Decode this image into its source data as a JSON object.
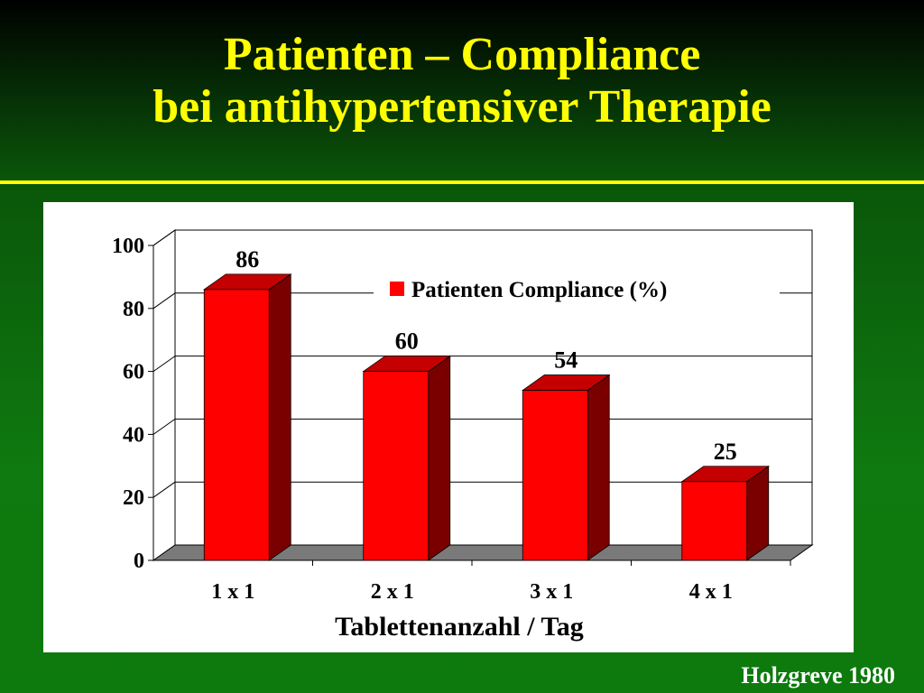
{
  "title": {
    "line1": "Patienten – Compliance",
    "line2": "bei antihypertensiver Therapie"
  },
  "source": "Holzgreve 1980",
  "colors": {
    "bar_front": "#ff0000",
    "bar_side": "#7a0000",
    "bar_top": "#c40000",
    "title": "#ffff00",
    "floor": "#7a7a7a"
  },
  "chart_data": {
    "type": "bar",
    "categories": [
      "1 x 1",
      "2 x 1",
      "3 x 1",
      "4 x 1"
    ],
    "series": [
      {
        "name": "Patienten Compliance (%)",
        "values": [
          86,
          60,
          54,
          25
        ]
      }
    ],
    "data_labels": [
      "86",
      "60",
      "54",
      "25"
    ],
    "xlabel": "Tablettenanzahl / Tag",
    "ylabel": "",
    "ylim": [
      0,
      100
    ],
    "yticks": [
      0,
      20,
      40,
      60,
      80,
      100
    ],
    "grid": true,
    "legend_position": "top-right",
    "style": "3d"
  }
}
